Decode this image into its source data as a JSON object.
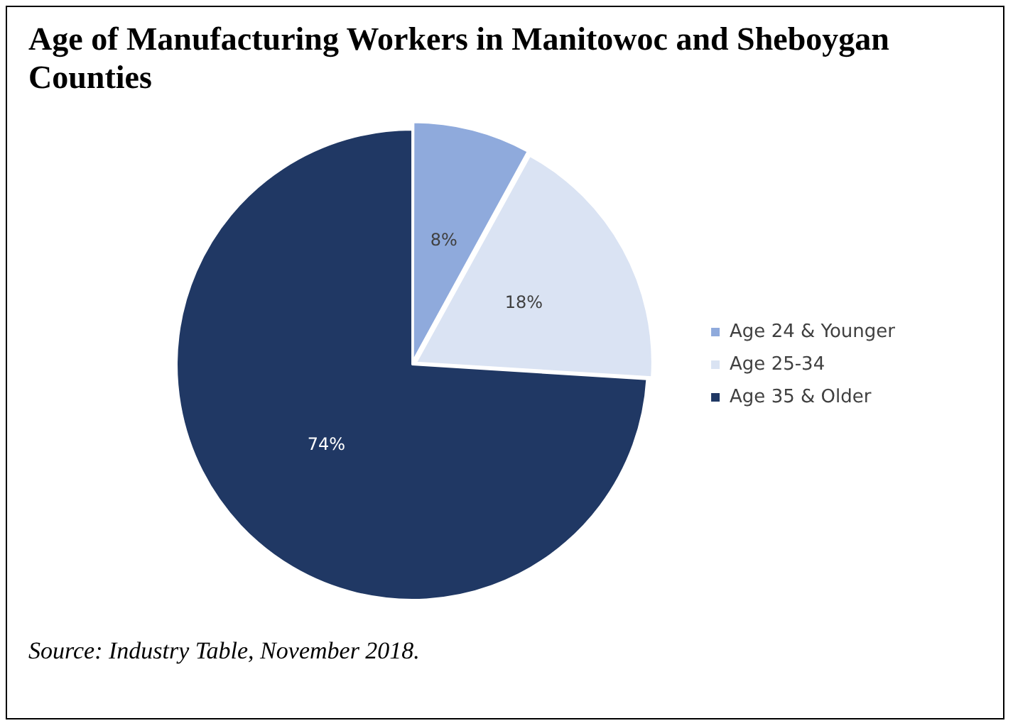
{
  "chart_data": {
    "type": "pie",
    "title": "Age of Manufacturing Workers in Manitowoc and Sheboygan Counties",
    "categories": [
      "Age 24 & Younger",
      "Age 25-34",
      "Age 35 & Older"
    ],
    "values": [
      8,
      18,
      74
    ],
    "colors": [
      "#8faadc",
      "#dae3f3",
      "#203864"
    ],
    "value_labels": [
      "8%",
      "18%",
      "74%"
    ],
    "legend": "right",
    "annotations": [
      "Source: Industry Table, November 2018."
    ]
  }
}
